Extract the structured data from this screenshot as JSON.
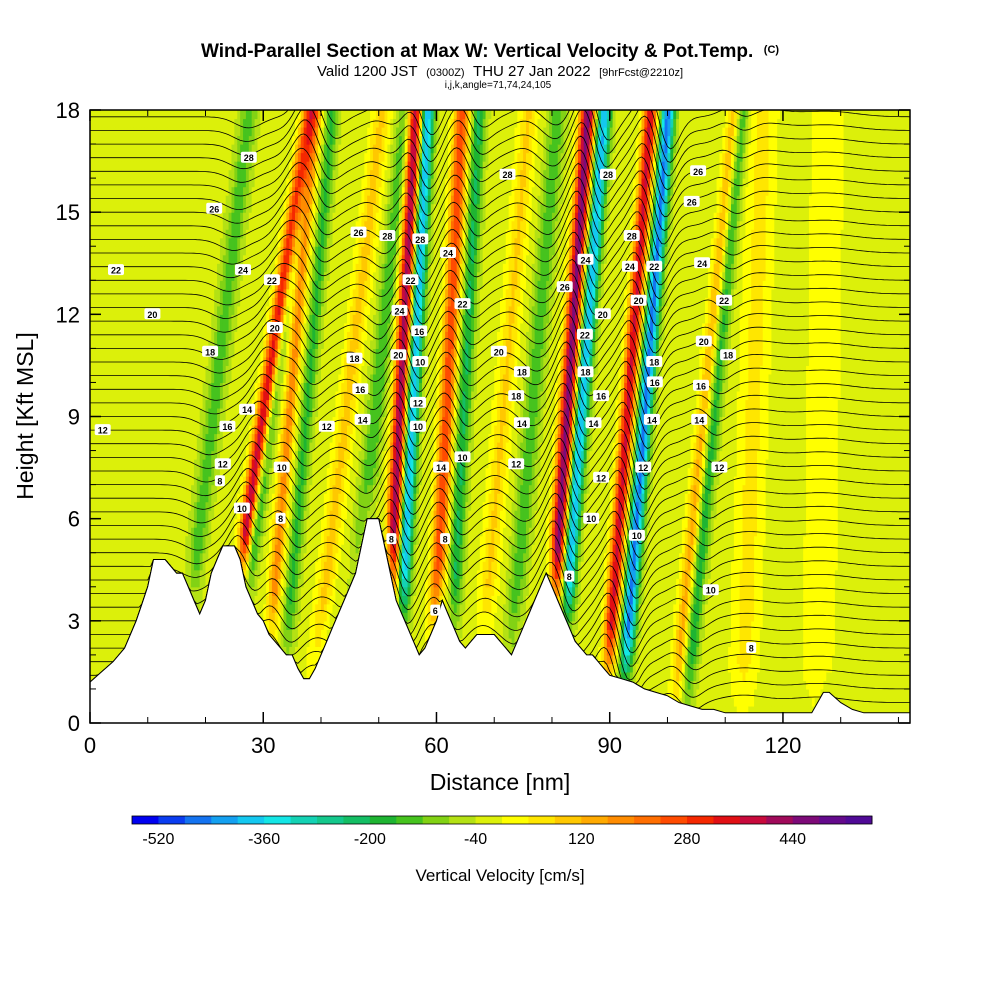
{
  "title": {
    "main": "Wind-Parallel Section at Max W: Vertical Velocity & Pot.Temp.",
    "copyright": "(C)",
    "valid_prefix": "Valid 1200 JST",
    "valid_zulu": "(0300Z)",
    "valid_date": "THU 27 Jan 2022",
    "forecast": "[9hrFcst@2210z]",
    "grid": "i,j,k,angle=71,74,24,105"
  },
  "chart_data": {
    "type": "heatmap",
    "xlabel": "Distance [nm]",
    "ylabel": "Height [Kft MSL]",
    "xlim": [
      0,
      142
    ],
    "ylim": [
      0,
      18
    ],
    "x_ticks": [
      0,
      30,
      60,
      90,
      120
    ],
    "y_ticks": [
      0,
      3,
      6,
      9,
      12,
      15,
      18
    ],
    "x_minor_step": 10,
    "y_minor_step": 1,
    "colorbar": {
      "title": "Vertical Velocity [cm/s]",
      "min": -560,
      "max": 560,
      "step": 40,
      "tick_values": [
        -520,
        -360,
        -200,
        -40,
        120,
        280,
        440
      ],
      "colors": [
        "#0000f0",
        "#0a3cf0",
        "#1473f0",
        "#14a0f0",
        "#14c8f0",
        "#14e6e6",
        "#14d2b4",
        "#14c88c",
        "#14be64",
        "#1eb432",
        "#46c31e",
        "#82d214",
        "#b4e114",
        "#dcf00a",
        "#ffff00",
        "#ffe600",
        "#ffc800",
        "#ffaa00",
        "#ff8c00",
        "#ff6e00",
        "#ff4b00",
        "#f52800",
        "#e10f14",
        "#c80a3c",
        "#a00a5a",
        "#7d0a78",
        "#640a8c",
        "#500a96"
      ]
    },
    "background_w": -25,
    "updrafts": [
      {
        "x0": 22,
        "slope": 0.9,
        "amp": 460,
        "width": 1.3
      },
      {
        "x0": 30,
        "slope": 0.5,
        "amp": 200,
        "width": 1.2
      },
      {
        "x0": 51,
        "slope": 0.3,
        "amp": 470,
        "width": 1.3
      },
      {
        "x0": 59,
        "slope": 0.3,
        "amp": 300,
        "width": 1.3
      },
      {
        "x0": 79,
        "slope": 0.4,
        "amp": 490,
        "width": 1.3
      },
      {
        "x0": 89,
        "slope": 0.45,
        "amp": 390,
        "width": 1.2
      },
      {
        "x0": 101,
        "slope": 0.6,
        "amp": 170,
        "width": 1.3
      },
      {
        "x0": 38,
        "slope": 0.7,
        "amp": 120,
        "width": 1.6
      },
      {
        "x0": 67,
        "slope": 0.5,
        "amp": 110,
        "width": 1.6
      },
      {
        "x0": 113,
        "slope": 0.2,
        "amp": 80,
        "width": 2.5
      },
      {
        "x0": 126,
        "slope": 0.1,
        "amp": 60,
        "width": 3.0
      }
    ],
    "downdrafts": [
      {
        "x0": 24,
        "slope": 0.8,
        "amp": -200,
        "width": 1.2
      },
      {
        "x0": 33,
        "slope": 0.5,
        "amp": -140,
        "width": 1.2
      },
      {
        "x0": 53,
        "slope": 0.3,
        "amp": -400,
        "width": 1.2
      },
      {
        "x0": 62,
        "slope": 0.3,
        "amp": -180,
        "width": 1.2
      },
      {
        "x0": 81,
        "slope": 0.45,
        "amp": -380,
        "width": 1.2
      },
      {
        "x0": 92,
        "slope": 0.45,
        "amp": -430,
        "width": 1.2
      },
      {
        "x0": 103,
        "slope": 0.55,
        "amp": -180,
        "width": 1.2
      },
      {
        "x0": 15,
        "slope": 0.7,
        "amp": -120,
        "width": 1.5
      },
      {
        "x0": 44,
        "slope": 0.6,
        "amp": -130,
        "width": 1.5
      },
      {
        "x0": 72,
        "slope": 0.5,
        "amp": -120,
        "width": 1.5
      }
    ],
    "terrain": {
      "x": [
        0,
        2,
        4,
        6,
        7,
        8,
        9,
        10,
        11,
        13,
        15,
        16,
        17,
        18,
        19,
        20,
        21,
        22,
        23,
        24,
        25,
        26,
        27,
        28,
        29,
        30,
        31,
        32,
        33,
        34,
        35,
        36,
        37,
        38,
        39,
        40,
        41,
        42,
        43,
        44,
        45,
        46,
        47,
        48,
        49,
        50,
        51,
        52,
        53,
        54,
        55,
        56,
        57,
        58,
        59,
        60,
        61,
        62,
        63,
        64,
        65,
        66,
        67,
        68,
        69,
        70,
        71,
        72,
        73,
        74,
        75,
        76,
        77,
        78,
        79,
        80,
        81,
        82,
        83,
        84,
        85,
        86,
        87,
        88,
        89,
        90,
        92,
        94,
        96,
        98,
        100,
        102,
        104,
        106,
        108,
        110,
        115,
        120,
        125,
        126,
        127,
        128,
        130,
        132,
        134,
        136,
        138,
        140,
        142
      ],
      "y": [
        1.2,
        1.5,
        1.8,
        2.2,
        2.6,
        3.0,
        3.5,
        4.0,
        4.8,
        4.8,
        4.4,
        4.4,
        4.0,
        3.6,
        3.2,
        3.6,
        4.4,
        4.8,
        5.2,
        5.2,
        5.2,
        4.8,
        4.0,
        3.6,
        3.2,
        3.0,
        2.6,
        2.4,
        2.2,
        2.0,
        2.0,
        1.6,
        1.3,
        1.3,
        1.6,
        2.0,
        2.4,
        2.8,
        3.2,
        3.6,
        4.0,
        4.4,
        5.2,
        6.0,
        6.0,
        6.0,
        5.2,
        4.4,
        3.6,
        3.2,
        2.8,
        2.4,
        2.0,
        2.2,
        2.6,
        3.0,
        3.6,
        3.2,
        2.8,
        2.4,
        2.2,
        2.4,
        2.6,
        2.6,
        2.6,
        2.6,
        2.4,
        2.2,
        2.0,
        2.4,
        2.8,
        3.2,
        3.6,
        4.0,
        4.4,
        4.0,
        3.6,
        3.2,
        2.8,
        2.4,
        2.2,
        2.0,
        2.0,
        1.8,
        1.6,
        1.4,
        1.3,
        1.2,
        1.0,
        0.9,
        0.8,
        0.6,
        0.5,
        0.4,
        0.4,
        0.3,
        0.3,
        0.3,
        0.3,
        0.6,
        0.9,
        0.9,
        0.6,
        0.4,
        0.3,
        0.3,
        0.3,
        0.3,
        0.3
      ]
    },
    "isentropes": {
      "count": 44,
      "bottom_kft": 0.6,
      "spacing_kft": 0.4,
      "wave_amp_kft": 1.3
    },
    "contour_labels": [
      {
        "text": "28",
        "x": 27.5,
        "y": 16.6
      },
      {
        "text": "26",
        "x": 21.5,
        "y": 15.1
      },
      {
        "text": "24",
        "x": 26.5,
        "y": 13.3
      },
      {
        "text": "22",
        "x": 31.5,
        "y": 13.0
      },
      {
        "text": "22",
        "x": 4.5,
        "y": 13.3
      },
      {
        "text": "20",
        "x": 10.8,
        "y": 12.0
      },
      {
        "text": "20",
        "x": 32.0,
        "y": 11.6
      },
      {
        "text": "18",
        "x": 20.8,
        "y": 10.9
      },
      {
        "text": "16",
        "x": 23.8,
        "y": 8.7
      },
      {
        "text": "14",
        "x": 27.2,
        "y": 9.2
      },
      {
        "text": "12",
        "x": 23.0,
        "y": 7.6
      },
      {
        "text": "12",
        "x": 2.2,
        "y": 8.6
      },
      {
        "text": "8",
        "x": 22.5,
        "y": 7.1
      },
      {
        "text": "10",
        "x": 26.3,
        "y": 6.3
      },
      {
        "text": "10",
        "x": 33.2,
        "y": 7.5
      },
      {
        "text": "8",
        "x": 33.0,
        "y": 6.0
      },
      {
        "text": "26",
        "x": 46.5,
        "y": 14.4
      },
      {
        "text": "28",
        "x": 51.5,
        "y": 14.3
      },
      {
        "text": "28",
        "x": 57.2,
        "y": 14.2
      },
      {
        "text": "24",
        "x": 62.0,
        "y": 13.8
      },
      {
        "text": "22",
        "x": 55.5,
        "y": 13.0
      },
      {
        "text": "22",
        "x": 64.5,
        "y": 12.3
      },
      {
        "text": "24",
        "x": 53.6,
        "y": 12.1
      },
      {
        "text": "18",
        "x": 45.8,
        "y": 10.7
      },
      {
        "text": "16",
        "x": 46.8,
        "y": 9.8
      },
      {
        "text": "20",
        "x": 53.4,
        "y": 10.8
      },
      {
        "text": "16",
        "x": 57.0,
        "y": 11.5
      },
      {
        "text": "10",
        "x": 57.2,
        "y": 10.6
      },
      {
        "text": "12",
        "x": 56.8,
        "y": 9.4
      },
      {
        "text": "12",
        "x": 41.0,
        "y": 8.7
      },
      {
        "text": "14",
        "x": 47.2,
        "y": 8.9
      },
      {
        "text": "10",
        "x": 56.8,
        "y": 8.7
      },
      {
        "text": "14",
        "x": 60.8,
        "y": 7.5
      },
      {
        "text": "10",
        "x": 64.5,
        "y": 7.8
      },
      {
        "text": "8",
        "x": 52.2,
        "y": 5.4
      },
      {
        "text": "8",
        "x": 61.5,
        "y": 5.4
      },
      {
        "text": "6",
        "x": 59.8,
        "y": 3.3
      },
      {
        "text": "28",
        "x": 72.3,
        "y": 16.1
      },
      {
        "text": "20",
        "x": 70.8,
        "y": 10.9
      },
      {
        "text": "18",
        "x": 74.8,
        "y": 10.3
      },
      {
        "text": "18",
        "x": 73.8,
        "y": 9.6
      },
      {
        "text": "14",
        "x": 74.8,
        "y": 8.8
      },
      {
        "text": "12",
        "x": 73.8,
        "y": 7.6
      },
      {
        "text": "26",
        "x": 82.2,
        "y": 12.8
      },
      {
        "text": "24",
        "x": 85.8,
        "y": 13.6
      },
      {
        "text": "22",
        "x": 85.7,
        "y": 11.4
      },
      {
        "text": "18",
        "x": 85.8,
        "y": 10.3
      },
      {
        "text": "16",
        "x": 88.5,
        "y": 9.6
      },
      {
        "text": "14",
        "x": 87.2,
        "y": 8.8
      },
      {
        "text": "12",
        "x": 88.5,
        "y": 7.2
      },
      {
        "text": "10",
        "x": 86.8,
        "y": 6.0
      },
      {
        "text": "8",
        "x": 83.0,
        "y": 4.3
      },
      {
        "text": "28",
        "x": 89.7,
        "y": 16.1
      },
      {
        "text": "20",
        "x": 88.8,
        "y": 12.0
      },
      {
        "text": "28",
        "x": 93.8,
        "y": 14.3
      },
      {
        "text": "24",
        "x": 93.5,
        "y": 13.4
      },
      {
        "text": "22",
        "x": 97.7,
        "y": 13.4
      },
      {
        "text": "20",
        "x": 95.0,
        "y": 12.4
      },
      {
        "text": "18",
        "x": 97.7,
        "y": 10.6
      },
      {
        "text": "16",
        "x": 97.8,
        "y": 10.0
      },
      {
        "text": "14",
        "x": 97.3,
        "y": 8.9
      },
      {
        "text": "12",
        "x": 95.8,
        "y": 7.5
      },
      {
        "text": "10",
        "x": 94.7,
        "y": 5.5
      },
      {
        "text": "26",
        "x": 105.3,
        "y": 16.2
      },
      {
        "text": "26",
        "x": 104.2,
        "y": 15.3
      },
      {
        "text": "24",
        "x": 106.0,
        "y": 13.5
      },
      {
        "text": "22",
        "x": 109.8,
        "y": 12.4
      },
      {
        "text": "20",
        "x": 106.3,
        "y": 11.2
      },
      {
        "text": "18",
        "x": 110.5,
        "y": 10.8
      },
      {
        "text": "16",
        "x": 105.8,
        "y": 9.9
      },
      {
        "text": "14",
        "x": 105.5,
        "y": 8.9
      },
      {
        "text": "12",
        "x": 109.0,
        "y": 7.5
      },
      {
        "text": "10",
        "x": 107.5,
        "y": 3.9
      },
      {
        "text": "8",
        "x": 114.5,
        "y": 2.2
      }
    ]
  }
}
